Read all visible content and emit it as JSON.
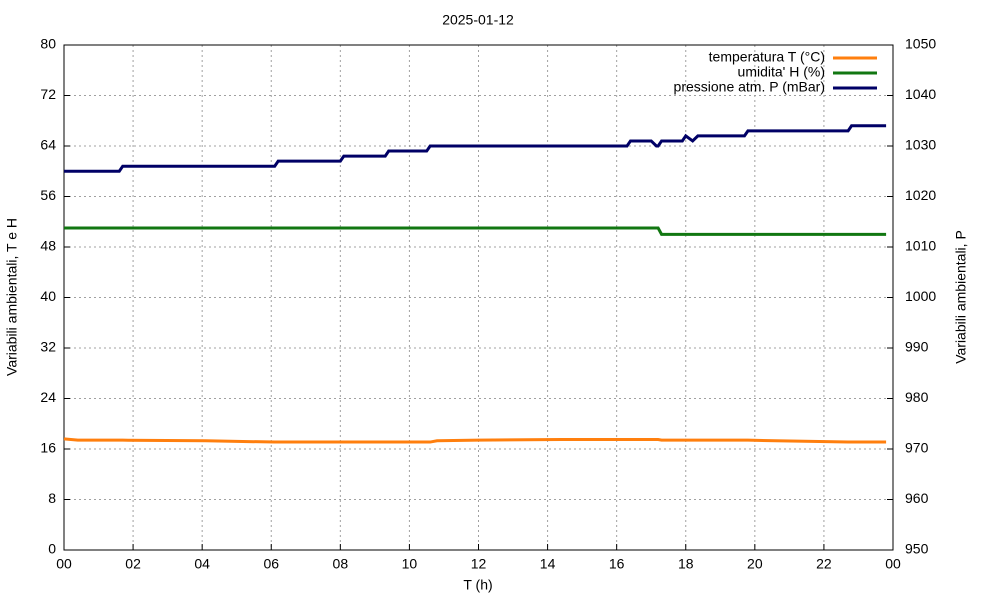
{
  "chart_data": {
    "type": "line",
    "title": "2025-01-12",
    "x_label": "T (h)",
    "y_label": "Variabili ambientali, T e H",
    "y2_label": "Variabili ambientali, P",
    "xlim": [
      0,
      24
    ],
    "xticks": [
      {
        "value": 0,
        "label": "00"
      },
      {
        "value": 2,
        "label": "02"
      },
      {
        "value": 4,
        "label": "04"
      },
      {
        "value": 6,
        "label": "06"
      },
      {
        "value": 8,
        "label": "08"
      },
      {
        "value": 10,
        "label": "10"
      },
      12,
      14,
      16,
      18,
      20,
      22,
      {
        "value": 24,
        "label": "00"
      }
    ],
    "ylim": [
      0,
      80
    ],
    "yticks": [
      0,
      8,
      16,
      24,
      32,
      40,
      48,
      56,
      64,
      72,
      80
    ],
    "y2lim": [
      950,
      1050
    ],
    "y2ticks": [
      950,
      960,
      970,
      980,
      990,
      1000,
      1010,
      1020,
      1030,
      1040,
      1050
    ],
    "grid": true,
    "legend": "top-right",
    "x": [
      0,
      0.4,
      1.6,
      1.7,
      4.1,
      6.1,
      6.2,
      8.0,
      8.1,
      9.3,
      9.4,
      10.5,
      10.6,
      10.8,
      12.0,
      14.4,
      16.3,
      16.4,
      17.0,
      17.15,
      17.2,
      17.3,
      17.4,
      17.9,
      18.0,
      18.2,
      18.35,
      19.7,
      19.8,
      20.6,
      22.7,
      22.8,
      23.8
    ],
    "series": [
      {
        "name": "temperatura T (°C)",
        "color": "#ff7f0e",
        "values": [
          17.6,
          17.4,
          17.4,
          17.4,
          17.3,
          17.1,
          17.1,
          17.1,
          17.1,
          17.1,
          17.1,
          17.1,
          17.1,
          17.3,
          17.4,
          17.5,
          17.5,
          17.5,
          17.5,
          17.5,
          17.5,
          17.4,
          17.4,
          17.4,
          17.4,
          17.4,
          17.4,
          17.4,
          17.4,
          17.3,
          17.1,
          17.1,
          17.1
        ]
      },
      {
        "name": "umidita' H (%)",
        "color": "#117711",
        "values": [
          51,
          51,
          51,
          51,
          51,
          51,
          51,
          51,
          51,
          51,
          51,
          51,
          51,
          51,
          51,
          51,
          51,
          51,
          51,
          51,
          51,
          50,
          50,
          50,
          50,
          50,
          50,
          50,
          50,
          50,
          50,
          50,
          50
        ]
      },
      {
        "name": "pressione atm. P (mBar)",
        "color": "#000066",
        "axis": "y2",
        "values": [
          1025,
          1025,
          1025,
          1026,
          1026,
          1026,
          1027,
          1027,
          1028,
          1028,
          1029,
          1029,
          1030,
          1030,
          1030,
          1030,
          1030,
          1031,
          1031,
          1030,
          1030,
          1031,
          1031,
          1031,
          1032,
          1031,
          1032,
          1032,
          1033,
          1033,
          1033,
          1034,
          1034
        ]
      }
    ]
  }
}
